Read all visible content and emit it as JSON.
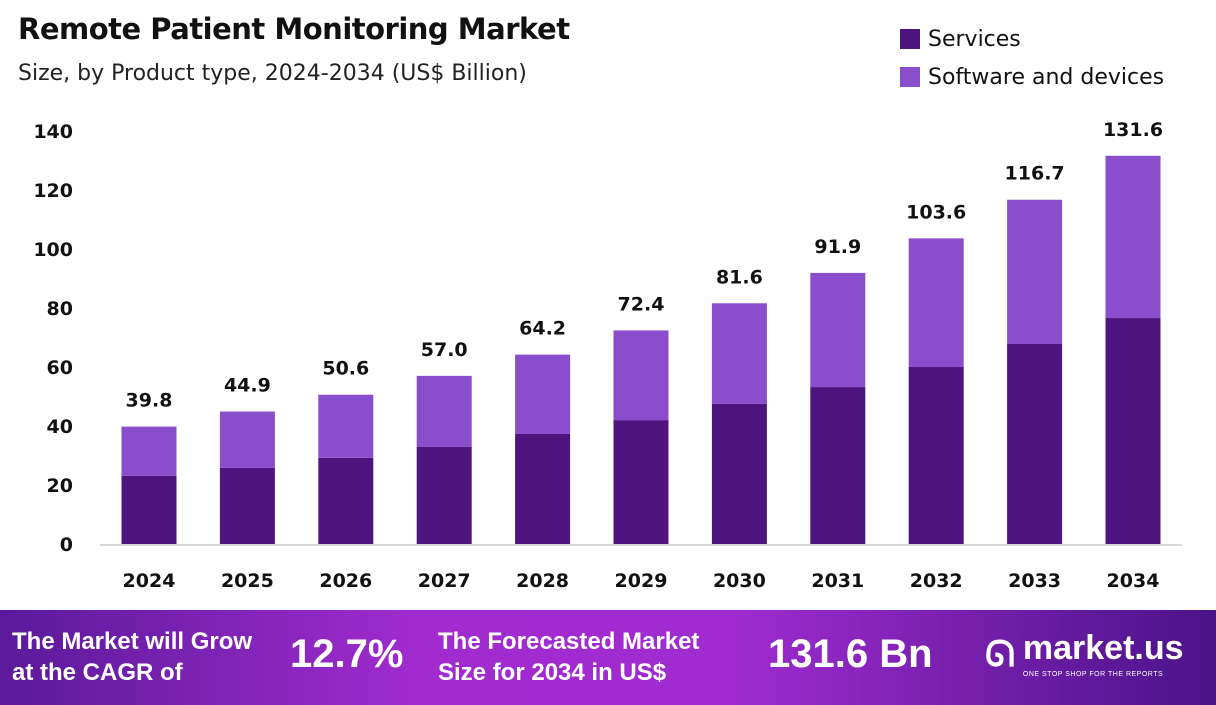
{
  "chart_data": {
    "type": "bar",
    "stacked": true,
    "title": "Remote Patient Monitoring Market",
    "subtitle": "Size, by Product type, 2024-2034 (US$ Billion)",
    "categories": [
      "2024",
      "2025",
      "2026",
      "2027",
      "2028",
      "2029",
      "2030",
      "2031",
      "2032",
      "2033",
      "2034"
    ],
    "series": [
      {
        "name": "Services",
        "color": "#4e1580",
        "values": [
          23.1,
          25.8,
          29.2,
          32.9,
          37.3,
          42.0,
          47.5,
          53.2,
          60.0,
          67.8,
          76.6
        ]
      },
      {
        "name": "Software and devices",
        "color": "#8a4dcc",
        "values": [
          16.7,
          19.1,
          21.4,
          24.1,
          26.9,
          30.4,
          34.1,
          38.7,
          43.6,
          48.9,
          55.0
        ]
      }
    ],
    "totals": [
      "39.8",
      "44.9",
      "50.6",
      "57.0",
      "64.2",
      "72.4",
      "81.6",
      "91.9",
      "103.6",
      "116.7",
      "131.6"
    ],
    "ylim": [
      0,
      140
    ],
    "yticks": [
      0,
      20,
      40,
      60,
      80,
      100,
      120,
      140
    ],
    "grid": false,
    "legend_position": "top-right"
  },
  "footer": {
    "cagr_text_1": "The Market will Grow",
    "cagr_text_2": "at the CAGR of",
    "cagr_value": "12.7%",
    "forecast_text_1": "The Forecasted Market",
    "forecast_text_2": "Size for 2034 in US$",
    "forecast_value": "131.6 Bn",
    "logo_name": "market.us",
    "logo_tagline": "ONE STOP SHOP FOR THE REPORTS"
  }
}
